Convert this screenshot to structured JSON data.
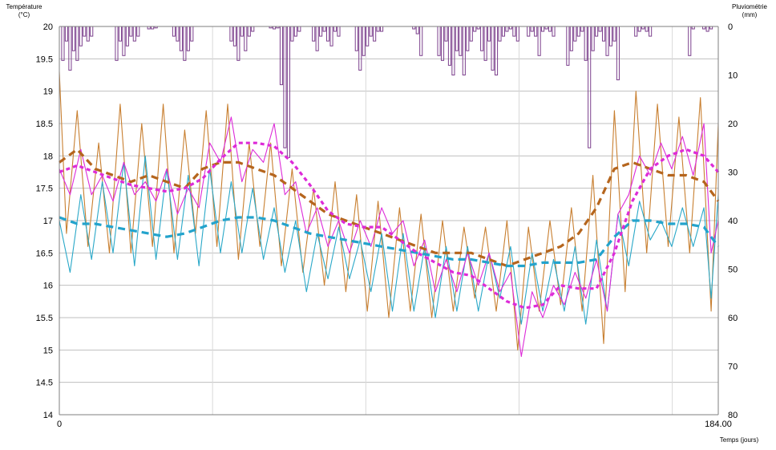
{
  "chart_data": {
    "type": "line",
    "title": "",
    "ylabel_left": [
      "Température",
      "(°C)"
    ],
    "ylabel_right": [
      "Pluviométrie",
      "(mm)"
    ],
    "xlabel": "Temps (jours)",
    "x_ticks": [
      "0",
      "184.00"
    ],
    "xlim": [
      0,
      184
    ],
    "ylim_left": [
      14,
      20
    ],
    "ylim_right_inverted": [
      0,
      80
    ],
    "y_ticks_left": [
      "14",
      "14.5",
      "15",
      "15.5",
      "16",
      "16.5",
      "17",
      "17.5",
      "18",
      "18.5",
      "19",
      "19.5",
      "20"
    ],
    "y_ticks_right": [
      "0",
      "10",
      "20",
      "30",
      "40",
      "50",
      "60",
      "70",
      "80"
    ],
    "grid": true,
    "legend": "none",
    "colors": {
      "orange": "#c87f30",
      "cyan": "#2aa8c8",
      "magenta": "#dd2bd8",
      "brown_dash": "#b5651d",
      "cyan_dash": "#23a3cc",
      "magenta_dash": "#dd2bd8",
      "rain": "#7b3f8c",
      "grid": "#bfbfbf"
    },
    "series": [
      {
        "kind": "line",
        "axis": "left",
        "color": "orange",
        "width": 1.1,
        "dash": "",
        "x": [
          0,
          2,
          5,
          8,
          11,
          14,
          17,
          20,
          23,
          26,
          29,
          32,
          35,
          38,
          41,
          44,
          47,
          50,
          53,
          56,
          59,
          62,
          65,
          68,
          71,
          74,
          77,
          80,
          83,
          86,
          89,
          92,
          95,
          98,
          101,
          104,
          107,
          110,
          113,
          116,
          119,
          122,
          125,
          128,
          131,
          134,
          137,
          140,
          143,
          146,
          149,
          152,
          155,
          158,
          161,
          164,
          167,
          170,
          173,
          176,
          179,
          182,
          184
        ],
        "y": [
          19.3,
          16.8,
          18.7,
          16.6,
          18.2,
          16.5,
          18.8,
          16.5,
          18.5,
          16.6,
          18.8,
          16.5,
          18.4,
          16.8,
          18.7,
          16.6,
          18.8,
          16.4,
          18.2,
          16.6,
          18.2,
          16.3,
          17.8,
          16.2,
          17.5,
          16.0,
          17.6,
          15.9,
          17.4,
          15.6,
          17.3,
          15.5,
          17.2,
          15.6,
          17.1,
          15.5,
          17.0,
          15.6,
          16.9,
          15.8,
          16.9,
          15.6,
          17.0,
          15.0,
          16.9,
          15.6,
          17.0,
          15.7,
          17.2,
          15.6,
          17.7,
          15.1,
          18.7,
          15.9,
          19.0,
          16.5,
          18.8,
          16.6,
          18.6,
          16.5,
          18.9,
          15.6,
          18.5
        ]
      },
      {
        "kind": "line",
        "axis": "left",
        "color": "cyan",
        "width": 1.1,
        "dash": "",
        "x": [
          0,
          3,
          6,
          9,
          12,
          15,
          18,
          21,
          24,
          27,
          30,
          33,
          36,
          39,
          42,
          45,
          48,
          51,
          54,
          57,
          60,
          63,
          66,
          69,
          72,
          75,
          78,
          81,
          84,
          87,
          90,
          93,
          96,
          99,
          102,
          105,
          108,
          111,
          114,
          117,
          120,
          123,
          126,
          129,
          132,
          135,
          138,
          141,
          144,
          147,
          150,
          153,
          156,
          159,
          162,
          165,
          168,
          171,
          174,
          177,
          180,
          182,
          184
        ],
        "y": [
          17.0,
          16.2,
          17.4,
          16.4,
          17.6,
          16.5,
          17.9,
          16.3,
          18.0,
          16.4,
          17.8,
          16.4,
          17.7,
          16.3,
          17.8,
          16.5,
          17.6,
          16.5,
          17.5,
          16.4,
          17.2,
          16.2,
          17.0,
          15.9,
          16.8,
          16.1,
          16.9,
          16.1,
          16.7,
          15.9,
          16.8,
          15.6,
          16.8,
          15.6,
          16.6,
          15.5,
          16.6,
          15.6,
          16.6,
          15.6,
          16.5,
          15.8,
          16.6,
          15.4,
          16.5,
          15.6,
          16.4,
          15.6,
          16.6,
          15.4,
          16.7,
          15.6,
          17.1,
          16.3,
          17.3,
          16.7,
          17.0,
          16.6,
          17.2,
          16.6,
          17.2,
          15.8,
          17.4
        ]
      },
      {
        "kind": "line",
        "axis": "left",
        "color": "magenta",
        "width": 1.1,
        "dash": "",
        "x": [
          0,
          3,
          6,
          9,
          12,
          15,
          18,
          21,
          24,
          27,
          30,
          33,
          36,
          39,
          42,
          45,
          48,
          51,
          54,
          57,
          60,
          63,
          66,
          69,
          72,
          75,
          78,
          81,
          84,
          87,
          90,
          93,
          96,
          99,
          102,
          105,
          108,
          111,
          114,
          117,
          120,
          123,
          126,
          129,
          132,
          135,
          138,
          141,
          144,
          147,
          150,
          153,
          156,
          159,
          162,
          165,
          168,
          171,
          174,
          177,
          180,
          182,
          184
        ],
        "y": [
          17.8,
          17.4,
          18.1,
          17.4,
          17.7,
          17.3,
          17.9,
          17.4,
          17.6,
          17.3,
          17.8,
          17.1,
          17.5,
          17.2,
          18.2,
          17.9,
          18.6,
          17.6,
          18.1,
          17.9,
          18.5,
          17.4,
          17.6,
          16.8,
          17.2,
          16.6,
          17.0,
          16.5,
          17.0,
          16.6,
          17.2,
          16.8,
          17.0,
          16.3,
          16.7,
          15.9,
          16.4,
          15.9,
          16.5,
          16.0,
          16.5,
          15.9,
          16.2,
          14.9,
          15.9,
          15.5,
          16.0,
          15.7,
          16.2,
          15.8,
          16.4,
          15.6,
          17.1,
          17.4,
          18.0,
          17.7,
          18.2,
          17.8,
          18.3,
          17.7,
          18.5,
          16.5,
          17.0
        ]
      },
      {
        "kind": "line",
        "axis": "left",
        "color": "brown_dash",
        "width": 3.2,
        "dash": "9 6",
        "x": [
          0,
          5,
          10,
          15,
          20,
          25,
          30,
          35,
          40,
          45,
          50,
          55,
          60,
          65,
          70,
          75,
          80,
          85,
          90,
          95,
          100,
          105,
          110,
          115,
          120,
          125,
          130,
          135,
          140,
          145,
          150,
          155,
          160,
          165,
          170,
          175,
          180,
          184
        ],
        "y": [
          17.9,
          18.1,
          17.8,
          17.7,
          17.6,
          17.7,
          17.6,
          17.5,
          17.8,
          17.9,
          17.9,
          17.8,
          17.7,
          17.5,
          17.3,
          17.1,
          17.0,
          16.9,
          16.8,
          16.7,
          16.6,
          16.5,
          16.5,
          16.5,
          16.4,
          16.3,
          16.4,
          16.5,
          16.6,
          16.8,
          17.2,
          17.8,
          17.9,
          17.8,
          17.7,
          17.7,
          17.6,
          17.3
        ]
      },
      {
        "kind": "line",
        "axis": "left",
        "color": "cyan_dash",
        "width": 3.2,
        "dash": "9 6",
        "x": [
          0,
          5,
          10,
          15,
          20,
          25,
          30,
          35,
          40,
          45,
          50,
          55,
          60,
          65,
          70,
          75,
          80,
          85,
          90,
          95,
          100,
          105,
          110,
          115,
          120,
          125,
          130,
          135,
          140,
          145,
          150,
          155,
          160,
          165,
          170,
          175,
          180,
          184
        ],
        "y": [
          17.05,
          16.95,
          16.95,
          16.9,
          16.85,
          16.8,
          16.75,
          16.8,
          16.9,
          17.0,
          17.05,
          17.05,
          17.0,
          16.9,
          16.8,
          16.75,
          16.7,
          16.65,
          16.6,
          16.55,
          16.5,
          16.45,
          16.4,
          16.4,
          16.35,
          16.3,
          16.3,
          16.35,
          16.35,
          16.35,
          16.4,
          16.75,
          17.0,
          17.0,
          16.95,
          16.95,
          16.9,
          16.6
        ]
      },
      {
        "kind": "line",
        "axis": "left",
        "color": "magenta_dash",
        "width": 3.2,
        "dash": "5 4",
        "x": [
          0,
          5,
          10,
          15,
          20,
          25,
          30,
          35,
          40,
          45,
          50,
          55,
          60,
          65,
          70,
          75,
          80,
          85,
          90,
          95,
          100,
          105,
          110,
          115,
          120,
          125,
          130,
          135,
          140,
          145,
          150,
          155,
          160,
          165,
          170,
          175,
          180,
          184
        ],
        "y": [
          17.75,
          17.85,
          17.75,
          17.65,
          17.55,
          17.5,
          17.45,
          17.5,
          17.65,
          17.95,
          18.2,
          18.2,
          18.15,
          17.9,
          17.55,
          17.15,
          16.95,
          16.9,
          16.9,
          16.7,
          16.5,
          16.35,
          16.2,
          16.15,
          15.95,
          15.75,
          15.65,
          15.7,
          16.0,
          15.95,
          15.95,
          16.5,
          17.3,
          17.8,
          18.0,
          18.1,
          18.0,
          17.75
        ]
      },
      {
        "kind": "bar",
        "axis": "right",
        "color": "rain",
        "x": [
          1,
          2,
          3,
          4,
          5,
          6,
          7,
          8,
          9,
          16,
          17,
          18,
          19,
          20,
          21,
          22,
          25,
          26,
          27,
          32,
          33,
          34,
          35,
          36,
          37,
          48,
          49,
          50,
          51,
          52,
          53,
          54,
          59,
          60,
          61,
          62,
          63,
          64,
          65,
          66,
          67,
          71,
          72,
          73,
          74,
          75,
          76,
          77,
          78,
          83,
          84,
          85,
          86,
          87,
          88,
          89,
          90,
          99,
          100,
          101,
          106,
          107,
          108,
          109,
          110,
          111,
          112,
          113,
          114,
          115,
          116,
          117,
          118,
          119,
          120,
          121,
          122,
          123,
          124,
          125,
          126,
          127,
          128,
          131,
          132,
          133,
          134,
          135,
          136,
          137,
          138,
          142,
          143,
          144,
          145,
          146,
          147,
          148,
          149,
          150,
          151,
          152,
          153,
          154,
          155,
          156,
          161,
          162,
          163,
          164,
          165,
          176,
          177,
          180,
          181,
          182
        ],
        "y": [
          7,
          3,
          9,
          5,
          7,
          4,
          2,
          3,
          2,
          7,
          3,
          6,
          4,
          2,
          3,
          2,
          0.5,
          0.5,
          0.3,
          2,
          3,
          5,
          7,
          5,
          3,
          3,
          4,
          7,
          2,
          5,
          2,
          1,
          0.3,
          0.5,
          0.3,
          12,
          25,
          27,
          3,
          2,
          1,
          3,
          5,
          2,
          1,
          3,
          4,
          1,
          2,
          5,
          9,
          6,
          4,
          2,
          3,
          1,
          1,
          0.5,
          1.5,
          6,
          6,
          7,
          3,
          8,
          10,
          5,
          6,
          10,
          5,
          3,
          1,
          0.5,
          5,
          7,
          3,
          9,
          10,
          3,
          2,
          1,
          0.5,
          2,
          3,
          2,
          1,
          2,
          6,
          1,
          0.5,
          1,
          2,
          8,
          5,
          3,
          2,
          1,
          7,
          25,
          5,
          2,
          1,
          3,
          6,
          4,
          3,
          11,
          2,
          1,
          0.5,
          1,
          2,
          6,
          0.5,
          0.5,
          1,
          0.5
        ]
      }
    ]
  }
}
